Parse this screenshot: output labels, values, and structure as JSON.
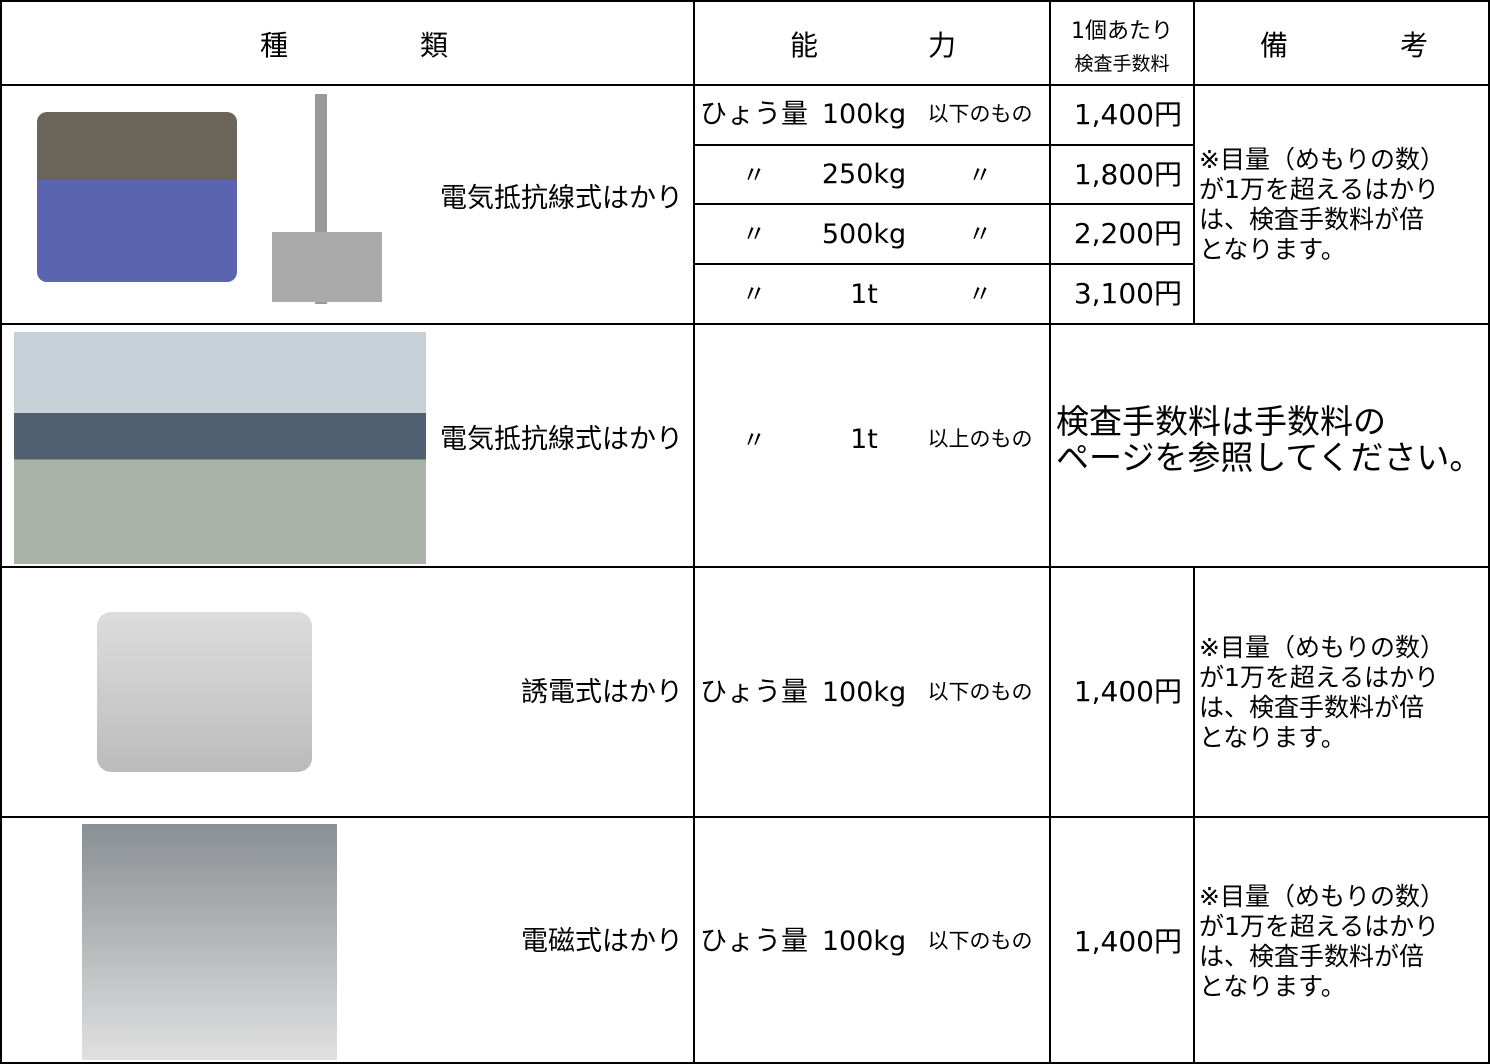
{
  "header": {
    "type": [
      "種",
      "類"
    ],
    "capacity": [
      "能",
      "力"
    ],
    "fee": [
      "1個あたり",
      "検査手数料"
    ],
    "notes": [
      "備",
      "考"
    ]
  },
  "rows": [
    {
      "type": "電気抵抗線式はかり",
      "capacity": [
        [
          "ひょう量",
          "100kg",
          "以下のもの"
        ],
        [
          "〃",
          "250kg",
          "〃"
        ],
        [
          "〃",
          "500kg",
          "〃"
        ],
        [
          "〃",
          "1t",
          "〃"
        ]
      ],
      "fees": [
        "1,400円",
        "1,800円",
        "2,200円",
        "3,100円"
      ],
      "notes": [
        "※目量（めもりの数）",
        "が1万を超えるはかり",
        "は、検査手数料が倍",
        "となります。"
      ]
    },
    {
      "type": "電気抵抗線式はかり",
      "capacity": [
        [
          "〃",
          "1t",
          "以上のもの"
        ]
      ],
      "fee_note": [
        "検査手数料は手数料の",
        "ページを参照してください。"
      ]
    },
    {
      "type": "誘電式はかり",
      "capacity": [
        [
          "ひょう量",
          "100kg",
          "以下のもの"
        ]
      ],
      "fees": [
        "1,400円"
      ],
      "notes": [
        "※目量（めもりの数）",
        "が1万を超えるはかり",
        "は、検査手数料が倍",
        "となります。"
      ]
    },
    {
      "type": "電磁式はかり",
      "capacity": [
        [
          "ひょう量",
          "100kg",
          "以下のもの"
        ]
      ],
      "fees": [
        "1,400円"
      ],
      "notes": [
        "※目量（めもりの数）",
        "が1万を超えるはかり",
        "は、検査手数料が倍",
        "となります。"
      ]
    }
  ]
}
